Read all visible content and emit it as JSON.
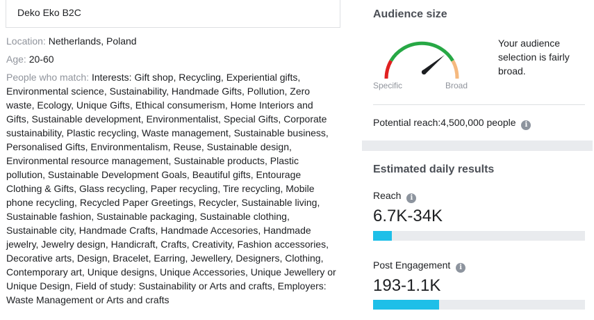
{
  "left": {
    "audience_name": "Deko Eko B2C",
    "location_label": "Location:",
    "location_value": "Netherlands, Poland",
    "age_label": "Age:",
    "age_value": "20-60",
    "match_label": "People who match:",
    "match_value": "Interests: Gift shop, Recycling, Experiential gifts, Environmental science, Sustainability, Handmade Gifts, Pollution, Zero waste, Ecology, Unique Gifts, Ethical consumerism, Home Interiors and Gifts, Sustainable development, Environmentalist, Special Gifts, Corporate sustainability, Plastic recycling, Waste management, Sustainable business, Personalised Gifts, Environmentalism, Reuse, Sustainable design, Environmental resource management, Sustainable products, Plastic pollution, Sustainable Development Goals, Beautiful gifts, Entourage Clothing & Gifts, Glass recycling, Paper recycling, Tire recycling, Mobile phone recycling, Recycled Paper Greetings, Recycler, Sustainable living, Sustainable fashion, Sustainable packaging, Sustainable clothing, Sustainable city, Handmade Crafts, Handmade Accesories, Handmade jewelry, Jewelry design, Handicraft, Crafts, Creativity, Fashion accessories, Decorative arts, Design, Bracelet, Earring, Jewellery, Designers, Clothing, Contemporary art, Unique designs, Unique Accessories, Unique Jewellery or Unique Design, Field of study: Sustainability or Arts and crafts, Employers: Waste Management or Arts and crafts"
  },
  "audience_size": {
    "title": "Audience size",
    "specific_label": "Specific",
    "broad_label": "Broad",
    "description": "Your audience selection is fairly broad.",
    "potential_reach_label": "Potential reach:",
    "potential_reach_value": "4,500,000 people",
    "info_glyph": "i",
    "gauge_colors": {
      "low": "#e02020",
      "mid": "#27a845",
      "high": "#f5b97f",
      "needle": "#1c1e21"
    }
  },
  "daily_results": {
    "title": "Estimated daily results",
    "reach_label": "Reach",
    "reach_value": "6.7K-34K",
    "reach_fill": 0.09,
    "engagement_label": "Post Engagement",
    "engagement_value": "193-1.1K",
    "engagement_fill": 0.31,
    "bar_color": "#1ebfe8"
  }
}
